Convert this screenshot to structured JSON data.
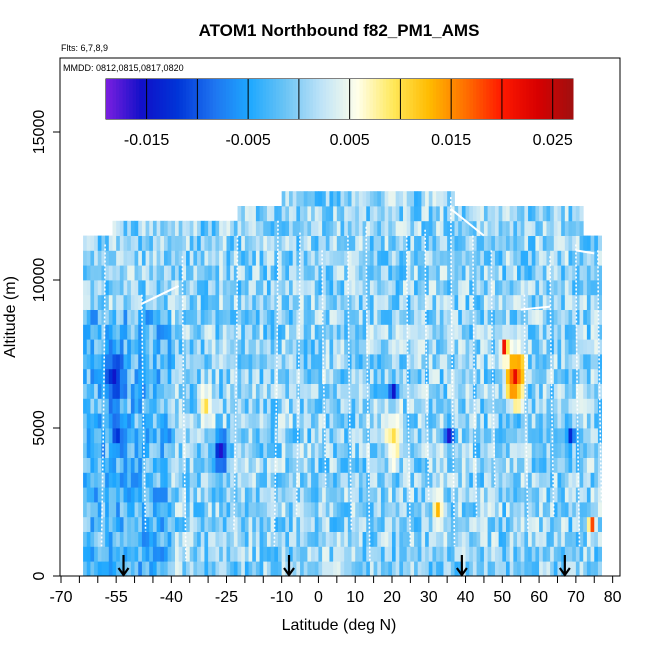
{
  "chart_data": {
    "type": "heatmap",
    "title": "ATOM1 Northbound f82_PM1_AMS",
    "subtitle_flights": "Flts: 6,7,8,9",
    "subtitle_dates": "MMDD: 0812,0815,0817,0820",
    "xlabel": "Latitude (deg N)",
    "ylabel": "Altitude (m)",
    "xlim": [
      -70,
      82
    ],
    "ylim": [
      0,
      17500
    ],
    "x_ticks": [
      -70,
      -55,
      -40,
      -25,
      -10,
      0,
      10,
      20,
      30,
      40,
      50,
      60,
      70,
      80
    ],
    "x_tick_labels": [
      "-70",
      "-55",
      "-40",
      "-25",
      "-10",
      "0",
      "10",
      "20",
      "30",
      "40",
      "50",
      "60",
      "70",
      "80"
    ],
    "y_ticks": [
      0,
      5000,
      10000,
      15000
    ],
    "y_tick_labels": [
      "0",
      "5000",
      "10000",
      "15000"
    ],
    "colorbar": {
      "range": [
        -0.019,
        0.027
      ],
      "ticks": [
        -0.015,
        -0.005,
        0.005,
        0.015,
        0.025
      ],
      "tick_labels": [
        "-0.015",
        "-0.005",
        "0.005",
        "0.015",
        "0.025"
      ],
      "boundaries": [
        -0.015,
        -0.01,
        -0.005,
        0.0,
        0.005,
        0.01,
        0.015,
        0.02,
        0.025
      ]
    },
    "arrow_latitudes": [
      -53,
      -8,
      39,
      67
    ],
    "data_extent": {
      "lat_min": -64,
      "lat_max": 77,
      "alt_max": 13000,
      "alt_step": 500
    },
    "colors": {
      "scale": [
        "#7b1fe0",
        "#1010c8",
        "#0035d8",
        "#1e74f0",
        "#1ea8ff",
        "#6cc4f5",
        "#bfe3f7",
        "#ffffea",
        "#ffe85a",
        "#ffbb00",
        "#ff7000",
        "#ff1a00",
        "#d80000",
        "#a01010"
      ],
      "flight_track": "#ffffff",
      "axis": "#000000"
    }
  }
}
